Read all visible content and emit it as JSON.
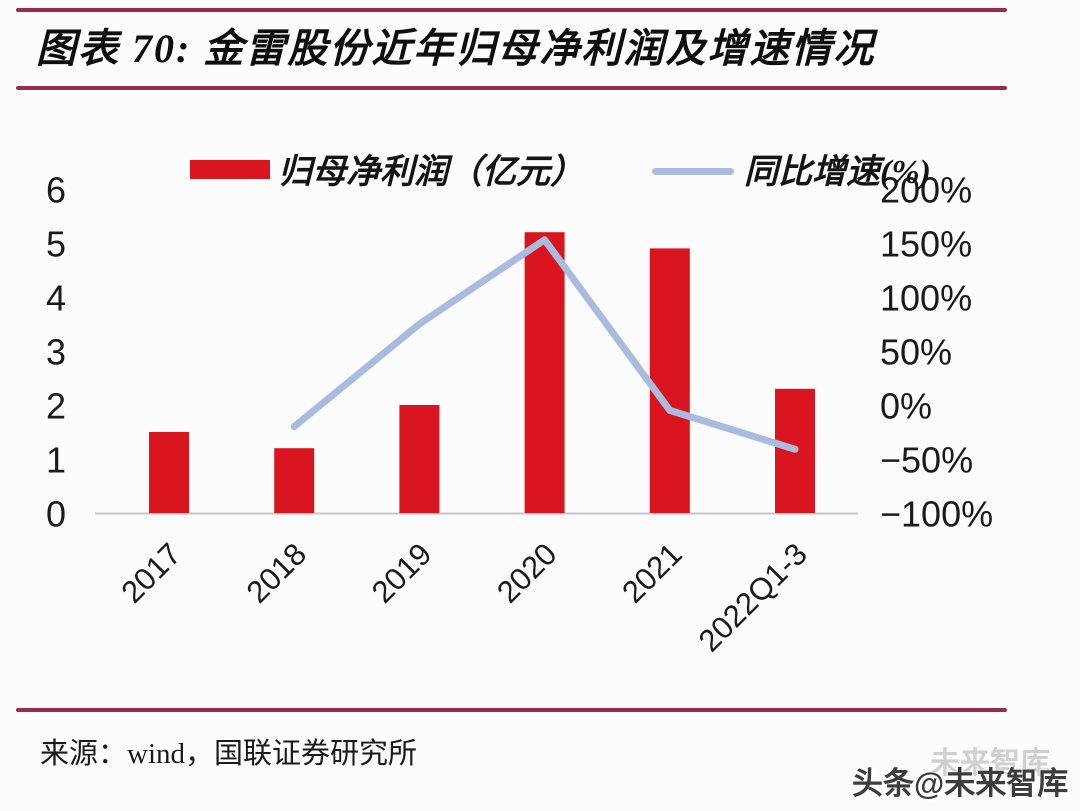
{
  "figure": {
    "title": "图表 70: 金雷股份近年归母净利润及增速情况",
    "source": "来源：wind，国联证券研究所",
    "watermark_main": "头条@未来智库",
    "watermark_ghost": "未来智库"
  },
  "legend": {
    "bar_label": "归母净利润（亿元）",
    "line_label": "同比增速(%)"
  },
  "colors": {
    "bar": "#d9161f",
    "line": "#a9bcdf",
    "rule": "#9b2b4b",
    "baseline": "#c6c6c6",
    "tick_text": "#1a1a1a"
  },
  "chart_data": {
    "type": "bar",
    "title": "金雷股份近年归母净利润及增速情况",
    "categories": [
      "2017",
      "2018",
      "2019",
      "2020",
      "2021",
      "2022Q1-3"
    ],
    "series": [
      {
        "name": "归母净利润（亿元）",
        "type": "bar",
        "axis": "left",
        "color": "#d9161f",
        "values": [
          1.5,
          1.2,
          2.0,
          5.2,
          4.9,
          2.3
        ]
      },
      {
        "name": "同比增速(%)",
        "type": "line",
        "axis": "right",
        "color": "#a9bcdf",
        "values": [
          null,
          -20,
          75,
          153,
          -5,
          -41
        ]
      }
    ],
    "left_axis": {
      "min": 0,
      "max": 6,
      "ticks": [
        0,
        1,
        2,
        3,
        4,
        5,
        6
      ]
    },
    "right_axis": {
      "min": -100,
      "max": 200,
      "tick_values": [
        200,
        150,
        100,
        50,
        0,
        -50,
        -100
      ],
      "tick_labels": [
        "200%",
        "150%",
        "100%",
        "50%",
        "0%",
        "−50%",
        "−100%"
      ]
    },
    "grid": false,
    "legend_position": "top"
  }
}
